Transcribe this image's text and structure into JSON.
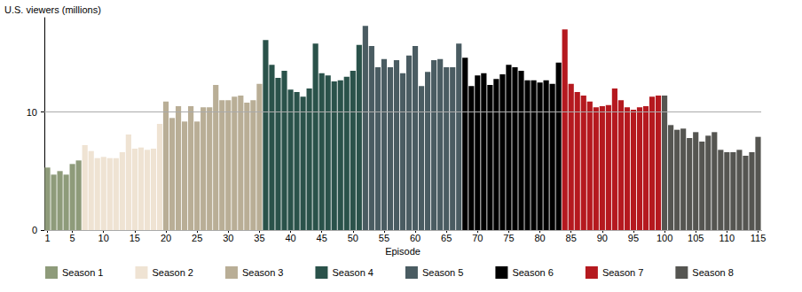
{
  "chart_data": {
    "type": "bar",
    "y_label": "U.S. viewers (millions)",
    "x_label": "Episode",
    "categories": [
      "1",
      null,
      null,
      null,
      "5",
      null,
      null,
      null,
      null,
      "10",
      null,
      null,
      null,
      null,
      "15",
      null,
      null,
      null,
      null,
      "20",
      null,
      null,
      null,
      null,
      "25",
      null,
      null,
      null,
      null,
      "30",
      null,
      null,
      null,
      null,
      "35",
      null,
      null,
      null,
      null,
      "40",
      null,
      null,
      null,
      null,
      "45",
      null,
      null,
      null,
      null,
      "50",
      null,
      null,
      null,
      null,
      "55",
      null,
      null,
      null,
      null,
      "60",
      null,
      null,
      null,
      null,
      "65",
      null,
      null,
      null,
      null,
      "70",
      null,
      null,
      null,
      null,
      "75",
      null,
      null,
      null,
      null,
      "80",
      null,
      null,
      null,
      null,
      "85",
      null,
      null,
      null,
      null,
      "90",
      null,
      null,
      null,
      null,
      "95",
      null,
      null,
      null,
      null,
      "100",
      null,
      null,
      null,
      null,
      "105",
      null,
      null,
      null,
      null,
      "110",
      null,
      null,
      null,
      null,
      "115"
    ],
    "series": [
      {
        "name": "Season 1",
        "color": "#8e9b7a",
        "values": [
          5.3,
          4.7,
          5.0,
          4.7,
          5.6,
          5.9,
          null,
          null,
          null,
          null,
          null,
          null,
          null,
          null,
          null,
          null,
          null,
          null,
          null,
          null,
          null,
          null,
          null,
          null,
          null,
          null,
          null,
          null,
          null,
          null,
          null,
          null,
          null,
          null,
          null,
          null,
          null,
          null,
          null,
          null,
          null,
          null,
          null,
          null,
          null,
          null,
          null,
          null,
          null,
          null,
          null,
          null,
          null,
          null,
          null,
          null,
          null,
          null,
          null,
          null,
          null,
          null,
          null,
          null,
          null,
          null,
          null,
          null,
          null,
          null,
          null,
          null,
          null,
          null,
          null,
          null,
          null,
          null,
          null,
          null,
          null,
          null,
          null,
          null,
          null,
          null,
          null,
          null,
          null,
          null,
          null,
          null,
          null,
          null,
          null,
          null,
          null,
          null,
          null,
          null,
          null,
          null,
          null,
          null,
          null,
          null,
          null,
          null,
          null,
          null,
          null,
          null,
          null,
          null,
          null
        ]
      },
      {
        "name": "Season 2",
        "color": "#efe3d3",
        "values": [
          null,
          null,
          null,
          null,
          null,
          null,
          7.2,
          6.7,
          6.1,
          6.2,
          6.1,
          6.1,
          6.6,
          8.1,
          6.9,
          7.0,
          6.8,
          6.9,
          9.0,
          null,
          null,
          null,
          null,
          null,
          null,
          null,
          null,
          null,
          null,
          null,
          null,
          null,
          null,
          null,
          null,
          null,
          null,
          null,
          null,
          null,
          null,
          null,
          null,
          null,
          null,
          null,
          null,
          null,
          null,
          null,
          null,
          null,
          null,
          null,
          null,
          null,
          null,
          null,
          null,
          null,
          null,
          null,
          null,
          null,
          null,
          null,
          null,
          null,
          null,
          null,
          null,
          null,
          null,
          null,
          null,
          null,
          null,
          null,
          null,
          null,
          null,
          null,
          null,
          null,
          null,
          null,
          null,
          null,
          null,
          null,
          null,
          null,
          null,
          null,
          null,
          null,
          null,
          null,
          null,
          null,
          null,
          null,
          null,
          null,
          null,
          null,
          null,
          null,
          null,
          null,
          null,
          null,
          null,
          null,
          null
        ]
      },
      {
        "name": "Season 3",
        "color": "#b9ae96",
        "values": [
          null,
          null,
          null,
          null,
          null,
          null,
          null,
          null,
          null,
          null,
          null,
          null,
          null,
          null,
          null,
          null,
          null,
          null,
          null,
          10.9,
          9.5,
          10.5,
          9.2,
          10.5,
          9.2,
          10.4,
          10.4,
          12.3,
          11.0,
          11.0,
          11.3,
          11.4,
          10.8,
          11.0,
          12.4,
          null,
          null,
          null,
          null,
          null,
          null,
          null,
          null,
          null,
          null,
          null,
          null,
          null,
          null,
          null,
          null,
          null,
          null,
          null,
          null,
          null,
          null,
          null,
          null,
          null,
          null,
          null,
          null,
          null,
          null,
          null,
          null,
          null,
          null,
          null,
          null,
          null,
          null,
          null,
          null,
          null,
          null,
          null,
          null,
          null,
          null,
          null,
          null,
          null,
          null,
          null,
          null,
          null,
          null,
          null,
          null,
          null,
          null,
          null,
          null,
          null,
          null,
          null,
          null,
          null,
          null,
          null,
          null,
          null,
          null,
          null,
          null,
          null,
          null,
          null,
          null,
          null,
          null,
          null,
          null
        ]
      },
      {
        "name": "Season 4",
        "color": "#2a524a",
        "values": [
          null,
          null,
          null,
          null,
          null,
          null,
          null,
          null,
          null,
          null,
          null,
          null,
          null,
          null,
          null,
          null,
          null,
          null,
          null,
          null,
          null,
          null,
          null,
          null,
          null,
          null,
          null,
          null,
          null,
          null,
          null,
          null,
          null,
          null,
          null,
          16.1,
          14.0,
          12.9,
          13.5,
          11.9,
          11.7,
          11.3,
          12.0,
          15.8,
          13.3,
          13.1,
          12.6,
          12.7,
          13.0,
          13.5,
          15.7,
          null,
          null,
          null,
          null,
          null,
          null,
          null,
          null,
          null,
          null,
          null,
          null,
          null,
          null,
          null,
          null,
          null,
          null,
          null,
          null,
          null,
          null,
          null,
          null,
          null,
          null,
          null,
          null,
          null,
          null,
          null,
          null,
          null,
          null,
          null,
          null,
          null,
          null,
          null,
          null,
          null,
          null,
          null,
          null,
          null,
          null,
          null,
          null,
          null,
          null,
          null,
          null,
          null,
          null,
          null,
          null,
          null,
          null,
          null,
          null,
          null,
          null,
          null,
          null
        ]
      },
      {
        "name": "Season 5",
        "color": "#4a5c62",
        "values": [
          null,
          null,
          null,
          null,
          null,
          null,
          null,
          null,
          null,
          null,
          null,
          null,
          null,
          null,
          null,
          null,
          null,
          null,
          null,
          null,
          null,
          null,
          null,
          null,
          null,
          null,
          null,
          null,
          null,
          null,
          null,
          null,
          null,
          null,
          null,
          null,
          null,
          null,
          null,
          null,
          null,
          null,
          null,
          null,
          null,
          null,
          null,
          null,
          null,
          null,
          null,
          17.3,
          15.6,
          13.8,
          14.5,
          13.8,
          14.4,
          13.3,
          14.8,
          15.6,
          12.2,
          13.4,
          14.4,
          14.5,
          13.8,
          13.8,
          15.8,
          null,
          null,
          null,
          null,
          null,
          null,
          null,
          null,
          null,
          null,
          null,
          null,
          null,
          null,
          null,
          null,
          null,
          null,
          null,
          null,
          null,
          null,
          null,
          null,
          null,
          null,
          null,
          null,
          null,
          null,
          null,
          null,
          null,
          null,
          null,
          null,
          null,
          null,
          null,
          null,
          null,
          null,
          null,
          null,
          null,
          null,
          null,
          null
        ]
      },
      {
        "name": "Season 6",
        "color": "#000000",
        "values": [
          null,
          null,
          null,
          null,
          null,
          null,
          null,
          null,
          null,
          null,
          null,
          null,
          null,
          null,
          null,
          null,
          null,
          null,
          null,
          null,
          null,
          null,
          null,
          null,
          null,
          null,
          null,
          null,
          null,
          null,
          null,
          null,
          null,
          null,
          null,
          null,
          null,
          null,
          null,
          null,
          null,
          null,
          null,
          null,
          null,
          null,
          null,
          null,
          null,
          null,
          null,
          null,
          null,
          null,
          null,
          null,
          null,
          null,
          null,
          null,
          null,
          null,
          null,
          null,
          null,
          null,
          null,
          14.6,
          12.2,
          13.1,
          13.3,
          12.3,
          12.8,
          13.2,
          14.0,
          13.8,
          13.5,
          12.7,
          12.7,
          12.5,
          12.7,
          12.4,
          14.2,
          null,
          null,
          null,
          null,
          null,
          null,
          null,
          null,
          null,
          null,
          null,
          null,
          null,
          null,
          null,
          null,
          null,
          null,
          null,
          null,
          null,
          null,
          null,
          null,
          null,
          null,
          null,
          null,
          null,
          null,
          null,
          null
        ]
      },
      {
        "name": "Season 7",
        "color": "#b5191f",
        "values": [
          null,
          null,
          null,
          null,
          null,
          null,
          null,
          null,
          null,
          null,
          null,
          null,
          null,
          null,
          null,
          null,
          null,
          null,
          null,
          null,
          null,
          null,
          null,
          null,
          null,
          null,
          null,
          null,
          null,
          null,
          null,
          null,
          null,
          null,
          null,
          null,
          null,
          null,
          null,
          null,
          null,
          null,
          null,
          null,
          null,
          null,
          null,
          null,
          null,
          null,
          null,
          null,
          null,
          null,
          null,
          null,
          null,
          null,
          null,
          null,
          null,
          null,
          null,
          null,
          null,
          null,
          null,
          null,
          null,
          null,
          null,
          null,
          null,
          null,
          null,
          null,
          null,
          null,
          null,
          null,
          null,
          null,
          null,
          17.0,
          12.4,
          11.7,
          11.4,
          10.9,
          10.4,
          10.5,
          10.6,
          12.0,
          11.0,
          10.4,
          10.2,
          10.4,
          10.5,
          11.3,
          11.4,
          null,
          null,
          null,
          null,
          null,
          null,
          null,
          null,
          null,
          null,
          null,
          null,
          null,
          null,
          null,
          null
        ]
      },
      {
        "name": "Season 8",
        "color": "#555551",
        "values": [
          null,
          null,
          null,
          null,
          null,
          null,
          null,
          null,
          null,
          null,
          null,
          null,
          null,
          null,
          null,
          null,
          null,
          null,
          null,
          null,
          null,
          null,
          null,
          null,
          null,
          null,
          null,
          null,
          null,
          null,
          null,
          null,
          null,
          null,
          null,
          null,
          null,
          null,
          null,
          null,
          null,
          null,
          null,
          null,
          null,
          null,
          null,
          null,
          null,
          null,
          null,
          null,
          null,
          null,
          null,
          null,
          null,
          null,
          null,
          null,
          null,
          null,
          null,
          null,
          null,
          null,
          null,
          null,
          null,
          null,
          null,
          null,
          null,
          null,
          null,
          null,
          null,
          null,
          null,
          null,
          null,
          null,
          null,
          null,
          null,
          null,
          null,
          null,
          null,
          null,
          null,
          null,
          null,
          null,
          null,
          null,
          null,
          null,
          null,
          11.4,
          8.9,
          8.5,
          8.6,
          7.8,
          8.3,
          7.5,
          8.0,
          8.3,
          6.8,
          6.6,
          6.6,
          6.8,
          6.3,
          6.6,
          7.9
        ]
      }
    ],
    "ylim": [
      0,
      18
    ],
    "yticks": [
      0,
      10
    ],
    "grid": true,
    "legend": "bottom"
  }
}
